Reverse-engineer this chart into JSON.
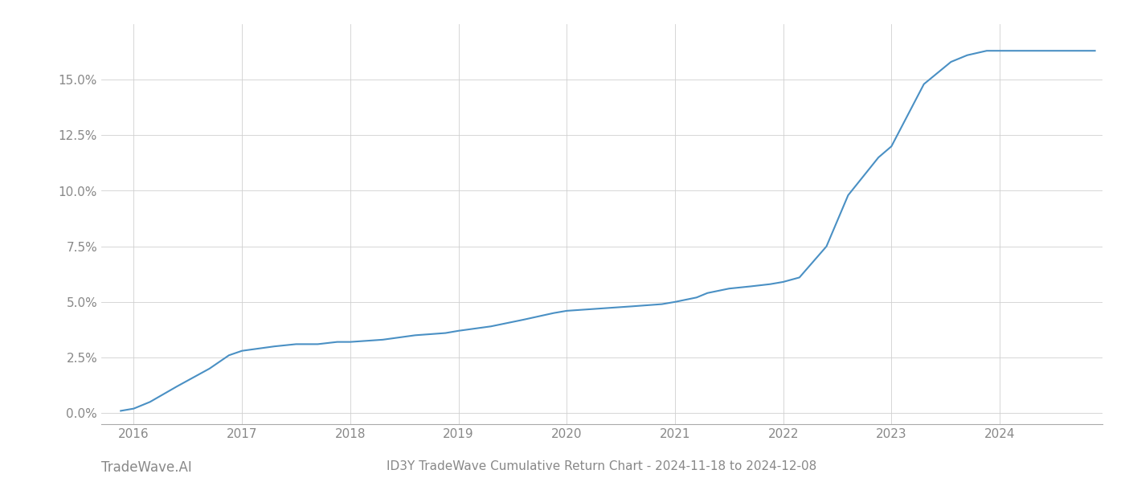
{
  "x_values": [
    2015.88,
    2016.0,
    2016.15,
    2016.4,
    2016.7,
    2016.88,
    2017.0,
    2017.15,
    2017.3,
    2017.5,
    2017.7,
    2017.88,
    2018.0,
    2018.3,
    2018.6,
    2018.88,
    2019.0,
    2019.3,
    2019.6,
    2019.88,
    2020.0,
    2020.3,
    2020.6,
    2020.88,
    2021.0,
    2021.1,
    2021.2,
    2021.3,
    2021.5,
    2021.7,
    2021.88,
    2022.0,
    2022.15,
    2022.4,
    2022.6,
    2022.88,
    2023.0,
    2023.3,
    2023.55,
    2023.7,
    2023.88,
    2024.0,
    2024.3,
    2024.6,
    2024.88
  ],
  "y_values": [
    0.001,
    0.002,
    0.005,
    0.012,
    0.02,
    0.026,
    0.028,
    0.029,
    0.03,
    0.031,
    0.031,
    0.032,
    0.032,
    0.033,
    0.035,
    0.036,
    0.037,
    0.039,
    0.042,
    0.045,
    0.046,
    0.047,
    0.048,
    0.049,
    0.05,
    0.051,
    0.052,
    0.054,
    0.056,
    0.057,
    0.058,
    0.059,
    0.061,
    0.075,
    0.098,
    0.115,
    0.12,
    0.148,
    0.158,
    0.161,
    0.163,
    0.163,
    0.163,
    0.163,
    0.163
  ],
  "line_color": "#4a90c4",
  "line_width": 1.5,
  "title": "ID3Y TradeWave Cumulative Return Chart - 2024-11-18 to 2024-12-08",
  "watermark": "TradeWave.AI",
  "background_color": "#ffffff",
  "grid_color": "#d0d0d0",
  "yticks": [
    0.0,
    0.025,
    0.05,
    0.075,
    0.1,
    0.125,
    0.15
  ],
  "xticks": [
    2016,
    2017,
    2018,
    2019,
    2020,
    2021,
    2022,
    2023,
    2024
  ],
  "xlim": [
    2015.7,
    2024.95
  ],
  "ylim": [
    -0.005,
    0.175
  ],
  "title_fontsize": 11,
  "tick_fontsize": 11,
  "watermark_fontsize": 12
}
